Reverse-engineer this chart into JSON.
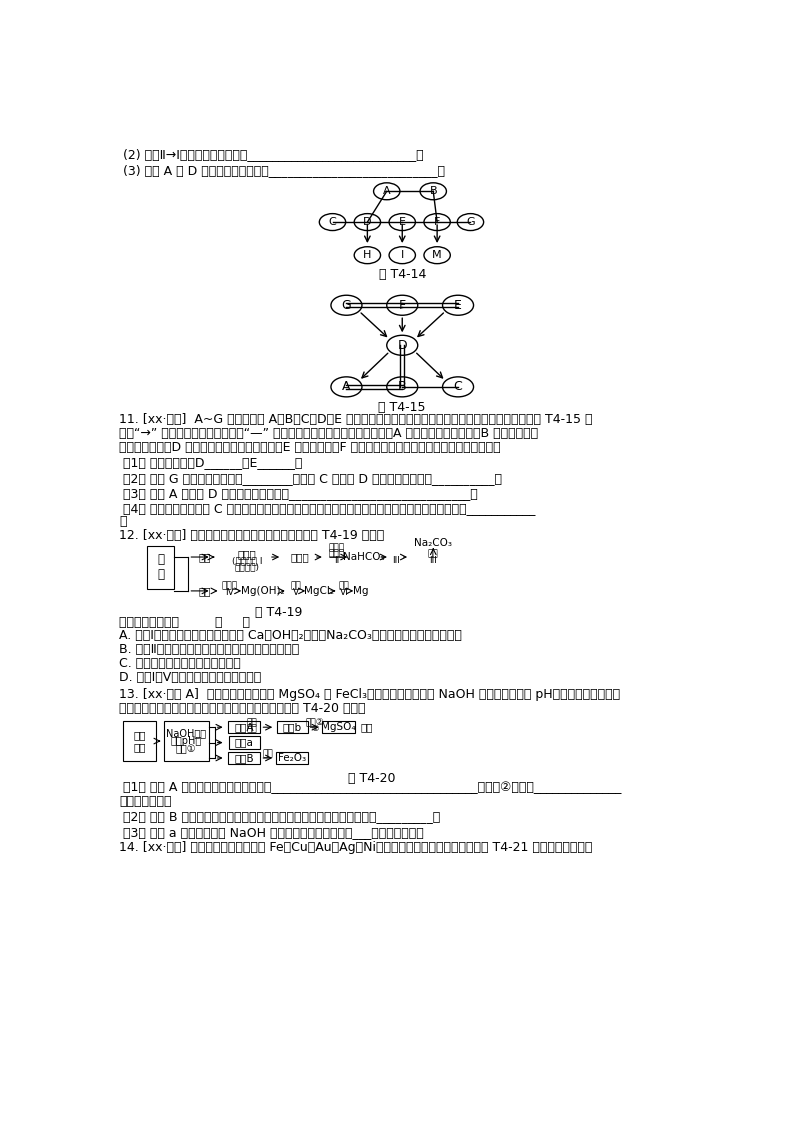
{
  "bg_color": "#ffffff",
  "text_color": "#000000",
  "line1": "(2) 写出Ⅱ→Ⅰ反应的化学方程式：___________________________。",
  "line2": "(3) 写出 A 与 D 反应的化学方程式：___________________________。",
  "fig14_label": "图 T4-14",
  "fig15_label": "图 T4-15",
  "q11_text1": "11. [xx·东营]  A~G 是纯净物且 A、B、C、D、E 是初中化学中常见的不同类别的物质。它们之间的关系如图 T4-15 所",
  "q11_text2": "示（“→” 表示物质间的转化关系，“—” 表示两端的物质能发生化学反应）。A 是草木灰的主要成分，B 是光合作用不",
  "q11_text3": "可缺少的物质，D 是由两种元素组成的化合物，E 是黑色粉末，F 是未来最理想的清洁能源，请回答下列问题。",
  "q11_1": " （1） 写出化学式：D______，E______。",
  "q11_2": " （2） 物质 G 所属的物质类别是________；物质 C 与物质 D 反应的基本类型是__________。",
  "q11_3": " （3） 物质 A 和物质 D 反应的化学方程式是_____________________________。",
  "q11_4": " （4） 古代常将草木灰与 C 溶液混合，滤取反应后清液作漂洗的洗涤剂。写出此反应的化学方程式：___________",
  "q11_4b": "。",
  "q12_intro": "12. [xx·泰安] 从海水中制备纯碱和金属镁的流程如图 T4-19 所示：",
  "q12_choices_header": "下列说法错误的是         （     ）",
  "q12_A": "A. 流程Ⅰ中依次向粗盐水中加入过量 Ca（OH）₂溶液、Na₂CO₃溶液和适量稀盐酸去除杂质",
  "q12_B": "B. 流程Ⅱ吸氨是使溶液呢碱性，有利于吸收二氧化碳",
  "q12_C": "C. 上述流程涉及三种基本反应类型",
  "q12_D": "D. 流程Ⅰ、Ⅴ是通过化学方法富集氯化镁",
  "q13_intro": "13. [xx·重庆 A]  某工厂的废水中含有 MgSO₄ 和 FeCl₃，技术人员逐渐加入 NaOH 溶液调节废水的 pH，先后分离出两种沉",
  "q13_text2": "淠，并通过系列处理得到有价值的产品。操作流程如图 T4-20 所示：",
  "q13_1": " （1） 固体 A 与某酸反应的化学方程式为_________________________________。操作②时，当______________",
  "q13_1b": "即可停止加热。",
  "q13_2": " （2） 固体 B 加热的产品是两种常见氧化物，则另一种氧化物的化学式为_________。",
  "q13_3": " （3） 溶液 a 除了可能含有 NaOH 外，还一定含有的离子是___（填化学式）。",
  "q14_intro": "14. [xx·咏宁] 某种手机电路板中含有 Fe、Cu、Au、Ag、Ni（镁，銀白色金属）等金属，如图 T4-21 是某工厂回收部分"
}
